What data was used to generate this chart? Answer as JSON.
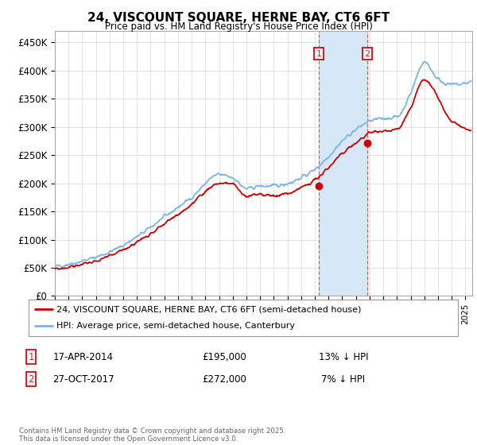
{
  "title": "24, VISCOUNT SQUARE, HERNE BAY, CT6 6FT",
  "subtitle": "Price paid vs. HM Land Registry's House Price Index (HPI)",
  "xlim_start": 1995.0,
  "xlim_end": 2025.5,
  "ylim": [
    0,
    470000
  ],
  "yticks": [
    0,
    50000,
    100000,
    150000,
    200000,
    250000,
    300000,
    350000,
    400000,
    450000
  ],
  "ytick_labels": [
    "£0",
    "£50K",
    "£100K",
    "£150K",
    "£200K",
    "£250K",
    "£300K",
    "£350K",
    "£400K",
    "£450K"
  ],
  "hpi_color": "#7ab4e8",
  "price_color": "#cc0000",
  "purchase1_date": 2014.29,
  "purchase1_price": 195000,
  "purchase2_date": 2017.83,
  "purchase2_price": 272000,
  "shade_color": "#d6e8f7",
  "vline_color": "#e05050",
  "annotation_box_color": "#cc2222",
  "legend_line1": "24, VISCOUNT SQUARE, HERNE BAY, CT6 6FT (semi-detached house)",
  "legend_line2": "HPI: Average price, semi-detached house, Canterbury",
  "table_row1": [
    "1",
    "17-APR-2014",
    "£195,000",
    "13% ↓ HPI"
  ],
  "table_row2": [
    "2",
    "27-OCT-2017",
    "£272,000",
    "7% ↓ HPI"
  ],
  "footnote": "Contains HM Land Registry data © Crown copyright and database right 2025.\nThis data is licensed under the Open Government Licence v3.0.",
  "bg_color": "#ffffff",
  "grid_color": "#dddddd"
}
